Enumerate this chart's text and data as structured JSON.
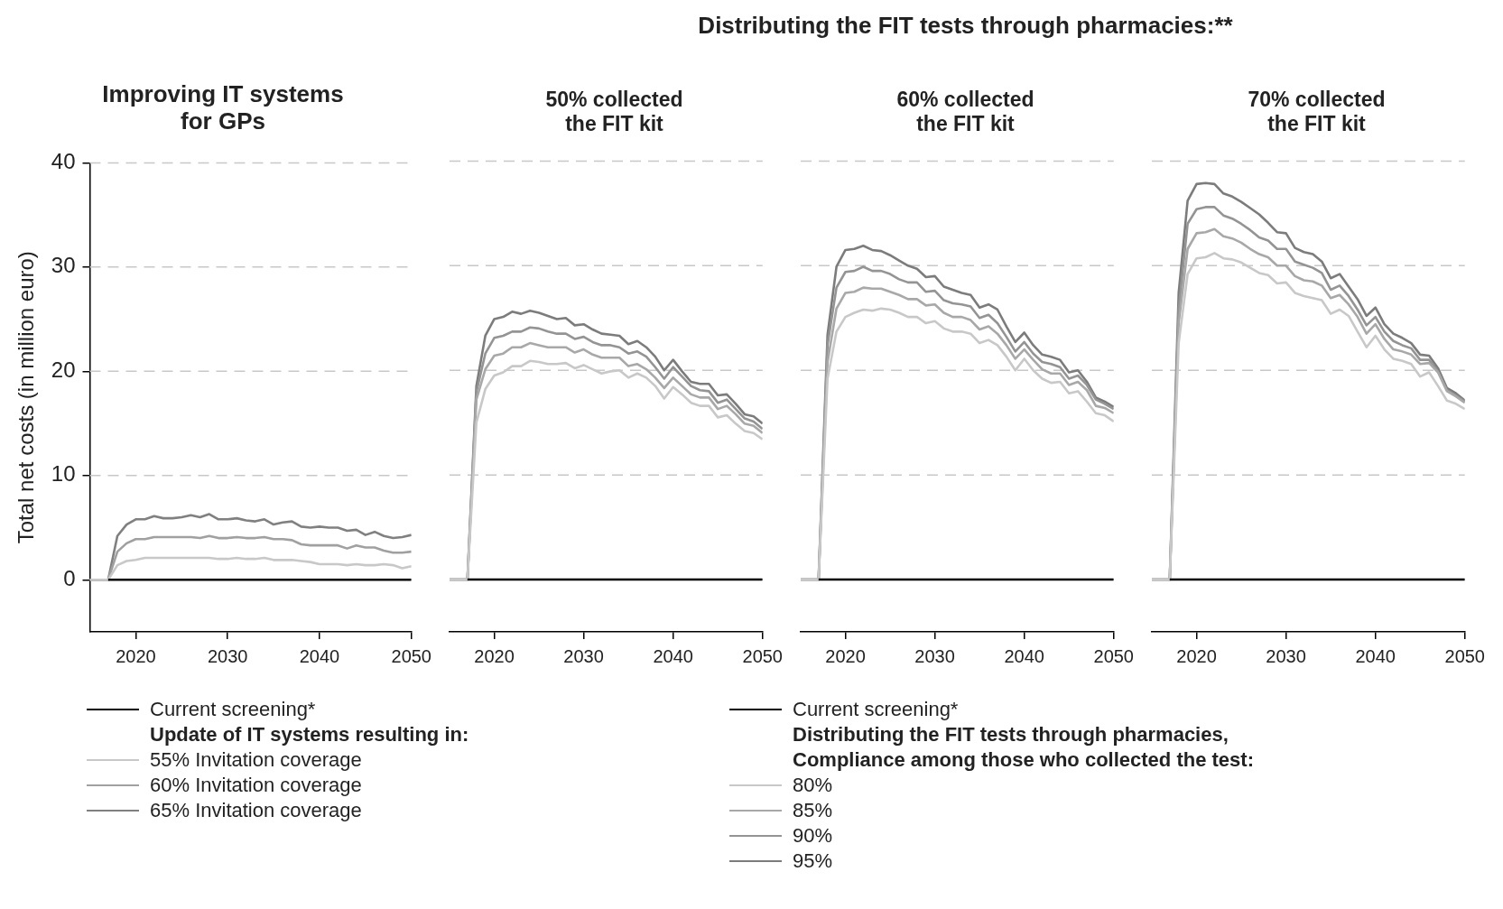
{
  "chart_data": [
    {
      "type": "line",
      "title": "Improving IT systems\nfor GPs",
      "ylabel": "Total net costs (in million euro)",
      "x": [
        2015,
        2016,
        2017,
        2018,
        2019,
        2020,
        2021,
        2022,
        2023,
        2024,
        2025,
        2026,
        2027,
        2028,
        2029,
        2030,
        2031,
        2032,
        2033,
        2034,
        2035,
        2036,
        2037,
        2038,
        2039,
        2040,
        2041,
        2042,
        2043,
        2044,
        2045,
        2046,
        2047,
        2048,
        2049,
        2050
      ],
      "xlim": [
        2015,
        2050
      ],
      "xticks": [
        2020,
        2030,
        2040,
        2050
      ],
      "ylim": [
        -5,
        40
      ],
      "yticks": [
        0,
        10,
        20,
        30,
        40
      ],
      "grid": "y",
      "legend": "bottom",
      "legend_title": "Update of IT systems resulting in:",
      "series": [
        {
          "name": "Current screening*",
          "color": "#000000",
          "values": [
            null,
            null,
            0,
            0,
            0,
            0,
            0,
            0,
            0,
            0,
            0,
            0,
            0,
            0,
            0,
            0,
            0,
            0,
            0,
            0,
            0,
            0,
            0,
            0,
            0,
            0,
            0,
            0,
            0,
            0,
            0,
            0,
            0,
            0,
            0,
            0
          ]
        },
        {
          "name": "55% Invitation coverage",
          "color": "#c8c8c8",
          "values": [
            0,
            0,
            0,
            1.4,
            1.8,
            1.9,
            2.1,
            2.1,
            2.1,
            2.1,
            2.1,
            2.1,
            2.1,
            2.1,
            2.0,
            2.0,
            2.1,
            2.0,
            2.0,
            2.1,
            1.9,
            1.9,
            1.9,
            1.8,
            1.7,
            1.5,
            1.5,
            1.5,
            1.4,
            1.5,
            1.4,
            1.4,
            1.5,
            1.4,
            1.1,
            1.3
          ]
        },
        {
          "name": "60% Invitation coverage",
          "color": "#a0a0a0",
          "values": [
            0,
            0,
            0,
            2.7,
            3.5,
            3.9,
            3.9,
            4.1,
            4.1,
            4.1,
            4.1,
            4.1,
            4.0,
            4.2,
            4.0,
            4.0,
            4.1,
            4.0,
            4.0,
            4.1,
            3.9,
            3.9,
            3.8,
            3.4,
            3.3,
            3.3,
            3.3,
            3.3,
            3.0,
            3.3,
            3.1,
            3.1,
            2.8,
            2.6,
            2.6,
            2.7
          ]
        },
        {
          "name": "65% Invitation coverage",
          "color": "#808080",
          "values": [
            0,
            0,
            0,
            4.2,
            5.3,
            5.8,
            5.8,
            6.1,
            5.9,
            5.9,
            6.0,
            6.2,
            6.0,
            6.3,
            5.8,
            5.8,
            5.9,
            5.7,
            5.6,
            5.8,
            5.3,
            5.5,
            5.6,
            5.1,
            5.0,
            5.1,
            5.0,
            5.0,
            4.7,
            4.8,
            4.3,
            4.6,
            4.2,
            4.0,
            4.1,
            4.3
          ]
        }
      ]
    },
    {
      "type": "line",
      "title": "50% collected\nthe FIT kit",
      "annotations": [
        "Distributing the FIT tests through pharmacies:**"
      ],
      "x": [
        2015,
        2016,
        2017,
        2018,
        2019,
        2020,
        2021,
        2022,
        2023,
        2024,
        2025,
        2026,
        2027,
        2028,
        2029,
        2030,
        2031,
        2032,
        2033,
        2034,
        2035,
        2036,
        2037,
        2038,
        2039,
        2040,
        2041,
        2042,
        2043,
        2044,
        2045,
        2046,
        2047,
        2048,
        2049,
        2050
      ],
      "xlim": [
        2015,
        2050
      ],
      "xticks": [
        2020,
        2030,
        2040,
        2050
      ],
      "ylim": [
        -5,
        40
      ],
      "yticks": [
        0,
        10,
        20,
        30,
        40
      ],
      "tick_labels": "x",
      "grid": "y",
      "legend": "bottom",
      "legend_title": "Distributing the FIT tests through pharmacies,\nCompliance among those who collected the test:",
      "series": [
        {
          "name": "Current screening*",
          "color": "#000000",
          "values": [
            null,
            null,
            0,
            0,
            0,
            0,
            0,
            0,
            0,
            0,
            0,
            0,
            0,
            0,
            0,
            0,
            0,
            0,
            0,
            0,
            0,
            0,
            0,
            0,
            0,
            0,
            0,
            0,
            0,
            0,
            0,
            0,
            0,
            0,
            0,
            0
          ]
        },
        {
          "name": "80%",
          "color": "#c8c8c8",
          "values": [
            0,
            0,
            0,
            15.0,
            18.2,
            19.5,
            19.8,
            20.4,
            20.4,
            20.9,
            20.8,
            20.6,
            20.6,
            20.7,
            20.2,
            20.5,
            20.1,
            19.7,
            19.9,
            20.0,
            19.3,
            19.7,
            19.3,
            18.5,
            17.3,
            18.4,
            17.7,
            16.9,
            16.6,
            16.6,
            15.5,
            15.7,
            14.9,
            14.2,
            14.0,
            13.4
          ]
        },
        {
          "name": "85%",
          "color": "#a8a8a8",
          "values": [
            0,
            0,
            0,
            17.2,
            20.1,
            21.4,
            21.6,
            22.2,
            22.2,
            22.6,
            22.4,
            22.2,
            22.2,
            22.2,
            21.7,
            22.0,
            21.5,
            21.2,
            21.2,
            21.2,
            20.4,
            20.6,
            20.1,
            19.3,
            18.3,
            19.3,
            18.5,
            17.7,
            17.4,
            17.4,
            16.3,
            16.6,
            15.8,
            14.9,
            14.7,
            14.0
          ]
        },
        {
          "name": "90%",
          "color": "#949494",
          "values": [
            0,
            0,
            0,
            17.9,
            21.6,
            23.1,
            23.3,
            23.7,
            23.7,
            24.1,
            24.0,
            23.7,
            23.5,
            23.5,
            23.0,
            23.2,
            22.7,
            22.4,
            22.4,
            22.2,
            21.6,
            21.8,
            21.3,
            20.3,
            19.2,
            20.3,
            19.4,
            18.5,
            18.1,
            18.0,
            16.9,
            17.2,
            16.3,
            15.4,
            15.1,
            14.4
          ]
        },
        {
          "name": "95%",
          "color": "#7c7c7c",
          "values": [
            0,
            0,
            0,
            18.5,
            23.3,
            24.9,
            25.1,
            25.6,
            25.4,
            25.7,
            25.5,
            25.2,
            24.9,
            25.0,
            24.3,
            24.4,
            23.9,
            23.5,
            23.4,
            23.3,
            22.5,
            22.8,
            22.2,
            21.3,
            20.0,
            21.0,
            19.9,
            18.9,
            18.7,
            18.7,
            17.6,
            17.7,
            16.8,
            15.8,
            15.6,
            14.9
          ]
        }
      ]
    },
    {
      "type": "line",
      "title": "60% collected\nthe FIT kit",
      "x": [
        2015,
        2016,
        2017,
        2018,
        2019,
        2020,
        2021,
        2022,
        2023,
        2024,
        2025,
        2026,
        2027,
        2028,
        2029,
        2030,
        2031,
        2032,
        2033,
        2034,
        2035,
        2036,
        2037,
        2038,
        2039,
        2040,
        2041,
        2042,
        2043,
        2044,
        2045,
        2046,
        2047,
        2048,
        2049,
        2050
      ],
      "xlim": [
        2015,
        2050
      ],
      "xticks": [
        2020,
        2030,
        2040,
        2050
      ],
      "ylim": [
        -5,
        40
      ],
      "yticks": [
        0,
        10,
        20,
        30,
        40
      ],
      "tick_labels": "x",
      "grid": "y",
      "series": [
        {
          "color": "#000000",
          "values": [
            null,
            null,
            0,
            0,
            0,
            0,
            0,
            0,
            0,
            0,
            0,
            0,
            0,
            0,
            0,
            0,
            0,
            0,
            0,
            0,
            0,
            0,
            0,
            0,
            0,
            0,
            0,
            0,
            0,
            0,
            0,
            0,
            0,
            0,
            0,
            0
          ]
        },
        {
          "color": "#c8c8c8",
          "values": [
            0,
            0,
            0,
            19.2,
            23.7,
            25.1,
            25.5,
            25.8,
            25.7,
            25.9,
            25.8,
            25.5,
            25.1,
            25.1,
            24.5,
            24.7,
            24.0,
            23.7,
            23.7,
            23.5,
            22.6,
            22.9,
            22.4,
            21.3,
            20.0,
            21.1,
            20.0,
            19.2,
            18.8,
            18.9,
            17.8,
            18.0,
            17.0,
            15.9,
            15.7,
            15.1
          ]
        },
        {
          "color": "#a8a8a8",
          "values": [
            0,
            0,
            0,
            20.8,
            25.9,
            27.4,
            27.5,
            27.9,
            27.8,
            27.8,
            27.5,
            27.2,
            26.8,
            26.8,
            26.2,
            26.3,
            25.5,
            25.1,
            25.1,
            24.8,
            23.9,
            24.2,
            23.5,
            22.4,
            21.1,
            22.0,
            21.0,
            20.1,
            19.7,
            19.7,
            18.6,
            18.9,
            18.1,
            16.6,
            16.4,
            15.9
          ]
        },
        {
          "color": "#949494",
          "values": [
            0,
            0,
            0,
            22.4,
            27.9,
            29.4,
            29.5,
            29.9,
            29.5,
            29.5,
            29.2,
            28.7,
            28.4,
            28.4,
            27.5,
            27.6,
            26.7,
            26.4,
            26.3,
            26.1,
            25.0,
            25.3,
            24.5,
            23.2,
            21.8,
            22.7,
            21.6,
            20.8,
            20.6,
            20.3,
            19.2,
            19.5,
            18.6,
            17.2,
            16.8,
            16.3
          ]
        },
        {
          "color": "#7c7c7c",
          "values": [
            0,
            0,
            0,
            23.4,
            29.9,
            31.5,
            31.6,
            31.9,
            31.5,
            31.4,
            31.0,
            30.5,
            30.0,
            29.7,
            28.9,
            29.0,
            28.0,
            27.7,
            27.4,
            27.2,
            26.0,
            26.3,
            25.8,
            24.2,
            22.7,
            23.6,
            22.4,
            21.5,
            21.3,
            21.0,
            19.8,
            20.0,
            18.9,
            17.4,
            17.0,
            16.5
          ]
        }
      ]
    },
    {
      "type": "line",
      "title": "70% collected\nthe FIT kit",
      "x": [
        2015,
        2016,
        2017,
        2018,
        2019,
        2020,
        2021,
        2022,
        2023,
        2024,
        2025,
        2026,
        2027,
        2028,
        2029,
        2030,
        2031,
        2032,
        2033,
        2034,
        2035,
        2036,
        2037,
        2038,
        2039,
        2040,
        2041,
        2042,
        2043,
        2044,
        2045,
        2046,
        2047,
        2048,
        2049,
        2050
      ],
      "xlim": [
        2015,
        2050
      ],
      "xticks": [
        2020,
        2030,
        2040,
        2050
      ],
      "ylim": [
        -5,
        40
      ],
      "yticks": [
        0,
        10,
        20,
        30,
        40
      ],
      "tick_labels": "x",
      "grid": "y",
      "series": [
        {
          "color": "#000000",
          "values": [
            null,
            null,
            0,
            0,
            0,
            0,
            0,
            0,
            0,
            0,
            0,
            0,
            0,
            0,
            0,
            0,
            0,
            0,
            0,
            0,
            0,
            0,
            0,
            0,
            0,
            0,
            0,
            0,
            0,
            0,
            0,
            0,
            0,
            0,
            0,
            0
          ]
        },
        {
          "color": "#c8c8c8",
          "values": [
            0,
            0,
            0,
            22.6,
            29.2,
            30.7,
            30.8,
            31.2,
            30.7,
            30.6,
            30.3,
            29.8,
            29.3,
            29.1,
            28.3,
            28.4,
            27.4,
            27.1,
            26.9,
            26.7,
            25.4,
            25.8,
            25.2,
            23.7,
            22.2,
            23.3,
            22.0,
            21.1,
            20.9,
            20.6,
            19.4,
            19.8,
            18.5,
            17.1,
            16.8,
            16.3
          ]
        },
        {
          "color": "#a8a8a8",
          "values": [
            0,
            0,
            0,
            24.5,
            31.6,
            33.1,
            33.2,
            33.5,
            32.8,
            32.6,
            32.2,
            31.6,
            31.1,
            30.8,
            30.0,
            30.0,
            29.0,
            28.6,
            28.5,
            28.1,
            26.9,
            27.2,
            26.3,
            25.1,
            23.5,
            24.4,
            23.0,
            22.0,
            21.8,
            21.5,
            20.6,
            20.7,
            19.8,
            18.0,
            17.5,
            16.9
          ]
        },
        {
          "color": "#949494",
          "values": [
            0,
            0,
            0,
            25.8,
            34.0,
            35.4,
            35.6,
            35.6,
            34.8,
            34.5,
            34.0,
            33.4,
            32.7,
            32.4,
            31.6,
            31.6,
            30.4,
            30.1,
            29.8,
            29.3,
            27.7,
            28.1,
            27.1,
            25.8,
            24.3,
            25.1,
            23.7,
            22.8,
            22.4,
            22.1,
            21.0,
            21.0,
            19.9,
            18.1,
            17.6,
            17.0
          ]
        },
        {
          "color": "#7c7c7c",
          "values": [
            0,
            0,
            0,
            27.4,
            36.2,
            37.8,
            37.9,
            37.8,
            36.9,
            36.6,
            36.1,
            35.5,
            34.9,
            34.1,
            33.2,
            33.1,
            31.7,
            31.3,
            31.1,
            30.4,
            28.8,
            29.2,
            28.0,
            26.8,
            25.2,
            26.0,
            24.4,
            23.5,
            23.1,
            22.6,
            21.5,
            21.4,
            20.2,
            18.3,
            17.8,
            17.1
          ]
        }
      ]
    }
  ]
}
